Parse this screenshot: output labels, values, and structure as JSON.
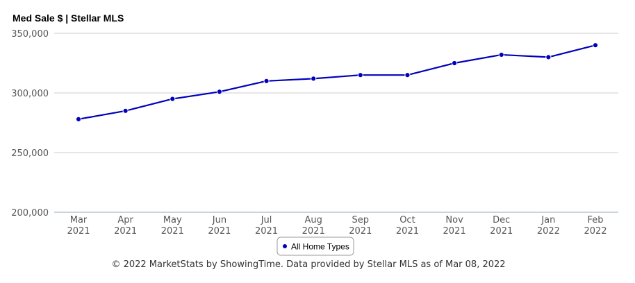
{
  "chart_data": {
    "type": "line",
    "title": "Med Sale $ | Stellar MLS",
    "categories": [
      [
        "Mar",
        "2021"
      ],
      [
        "Apr",
        "2021"
      ],
      [
        "May",
        "2021"
      ],
      [
        "Jun",
        "2021"
      ],
      [
        "Jul",
        "2021"
      ],
      [
        "Aug",
        "2021"
      ],
      [
        "Sep",
        "2021"
      ],
      [
        "Oct",
        "2021"
      ],
      [
        "Nov",
        "2021"
      ],
      [
        "Dec",
        "2021"
      ],
      [
        "Jan",
        "2022"
      ],
      [
        "Feb",
        "2022"
      ]
    ],
    "series": [
      {
        "name": "All Home Types",
        "color": "#0000bb",
        "values": [
          278000,
          285000,
          295000,
          301000,
          310000,
          312000,
          315000,
          315000,
          325000,
          332000,
          330000,
          340000
        ]
      }
    ],
    "ylim": [
      200000,
      350000
    ],
    "yticks": [
      "200,000",
      "250,000",
      "300,000",
      "350,000"
    ],
    "ytick_values": [
      200000,
      250000,
      300000,
      350000
    ],
    "grid": true,
    "legend_position": "bottom-center"
  },
  "footer": "© 2022 MarketStats by ShowingTime. Data provided by Stellar MLS as of Mar 08, 2022"
}
